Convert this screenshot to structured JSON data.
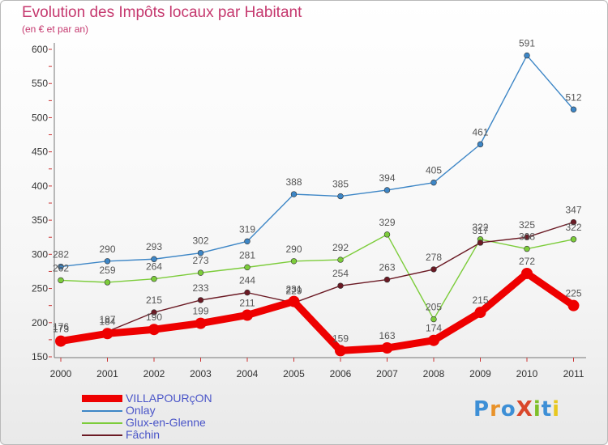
{
  "header": {
    "title": "Evolution des Impôts locaux par Habitant",
    "subtitle": "(en € et par an)"
  },
  "logo": {
    "text": "ProXiti",
    "colors": [
      "#3d8fd6",
      "#e8922a",
      "#3d8fd6",
      "#d9472b",
      "#7fbf2a",
      "#3d8fd6",
      "#e8c81f"
    ]
  },
  "chart_data": {
    "type": "line",
    "title": "Evolution des Impôts locaux par Habitant",
    "subtitle": "(en € et par an)",
    "xlabel": "",
    "ylabel": "",
    "categories": [
      "2000",
      "2001",
      "2002",
      "2003",
      "2004",
      "2005",
      "2006",
      "2007",
      "2008",
      "2009",
      "2010",
      "2011"
    ],
    "y_ticks": [
      150,
      200,
      250,
      300,
      350,
      400,
      450,
      500,
      550,
      600
    ],
    "ylim": [
      150,
      620
    ],
    "grid": false,
    "legend_position": "bottom-left",
    "series": [
      {
        "name": "VILLAPOURçON",
        "color": "#ee0000",
        "values": [
          173,
          184,
          190,
          199,
          211,
          231,
          159,
          163,
          174,
          215,
          272,
          225
        ],
        "labels": [
          "173",
          "184",
          "190",
          "199",
          "211",
          "231",
          "159",
          "163",
          "174",
          "215",
          "272",
          "225"
        ]
      },
      {
        "name": "Onlay",
        "color": "#3d86c6",
        "values": [
          282,
          290,
          293,
          302,
          319,
          388,
          385,
          394,
          405,
          461,
          591,
          512
        ],
        "labels": [
          "282",
          "290",
          "293",
          "302",
          "319",
          "388",
          "385",
          "394",
          "405",
          "461",
          "591",
          "512"
        ]
      },
      {
        "name": "Glux-en-Glenne",
        "color": "#7ccc3a",
        "values": [
          262,
          259,
          264,
          273,
          281,
          290,
          292,
          329,
          205,
          322,
          308,
          322
        ],
        "labels": [
          "262",
          "259",
          "264",
          "273",
          "281",
          "290",
          "292",
          "329",
          "205",
          "322",
          "308",
          "322"
        ]
      },
      {
        "name": "Fâchin",
        "color": "#6b1a24",
        "values": [
          176,
          187,
          215,
          233,
          244,
          229,
          254,
          263,
          278,
          317,
          325,
          347
        ],
        "labels": [
          "176",
          "187",
          "215",
          "233",
          "244",
          "229",
          "254",
          "263",
          "278",
          "317",
          "325",
          "347"
        ]
      }
    ]
  }
}
